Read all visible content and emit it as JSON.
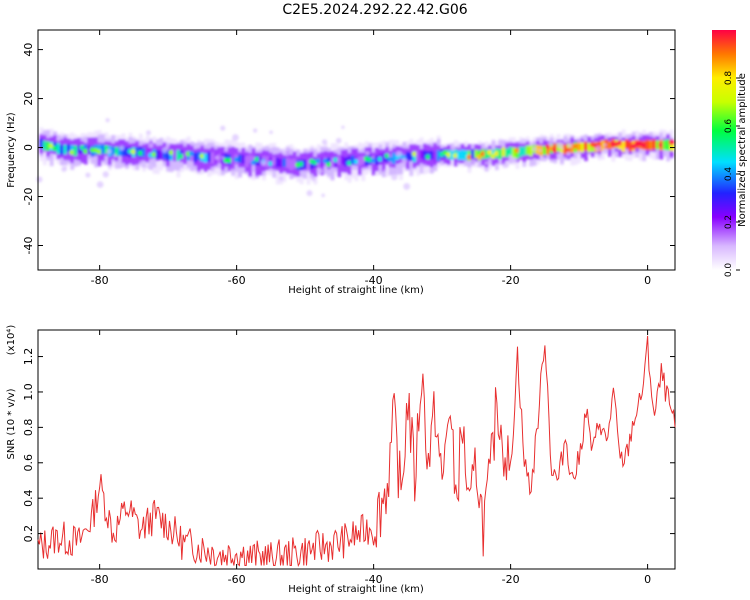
{
  "title": "C2E5.2024.292.22.42.G06",
  "chart_data": [
    {
      "type": "heatmap",
      "xlabel": "Height of straight line (km)",
      "ylabel": "Frequency (Hz)",
      "xlim": [
        -89,
        4
      ],
      "ylim": [
        -50,
        48
      ],
      "xticks": [
        "-80",
        "-60",
        "-40",
        "-20",
        "0"
      ],
      "yticks": [
        "40",
        "20",
        "0",
        "-20",
        "-40"
      ],
      "colorbar": {
        "label": "Normalized spectral amplitude",
        "range": [
          0,
          1
        ],
        "ticks": [
          "0.0",
          "0.2",
          "0.4",
          "0.6",
          "0.8"
        ]
      },
      "ridge": {
        "x": [
          -88,
          -85,
          -80,
          -75,
          -70,
          -65,
          -60,
          -55,
          -50,
          -45,
          -40,
          -35,
          -30,
          -25,
          -20,
          -15,
          -10,
          -5,
          0,
          4
        ],
        "frequency": [
          1,
          -1,
          -1,
          -2,
          -3,
          -4,
          -5,
          -6,
          -7,
          -6,
          -5,
          -4,
          -3,
          -3,
          -2,
          -1,
          0,
          1,
          1,
          1
        ],
        "amplitude": [
          0.45,
          0.4,
          0.4,
          0.38,
          0.35,
          0.3,
          0.25,
          0.22,
          0.2,
          0.2,
          0.22,
          0.28,
          0.35,
          0.5,
          0.62,
          0.72,
          0.82,
          0.85,
          0.8,
          0.75
        ]
      }
    },
    {
      "type": "line",
      "xlabel": "Height of straight line (km)",
      "ylabel": "SNR (10 * v/v)",
      "scale_label": "(x10⁴)",
      "xlim": [
        -89,
        4
      ],
      "ylim": [
        0,
        1.35
      ],
      "xticks": [
        "-80",
        "-60",
        "-40",
        "-20",
        "0"
      ],
      "yticks": [
        "0.2",
        "0.4",
        "0.6",
        "0.8",
        "1.0",
        "1.2"
      ],
      "color": "#e83030",
      "series": [
        {
          "x": [
            -89,
            -86,
            -83,
            -81,
            -80,
            -78,
            -76,
            -74,
            -72,
            -70,
            -68,
            -65,
            -62,
            -60,
            -58,
            -55,
            -52,
            -50,
            -48,
            -45,
            -42,
            -40,
            -39,
            -38,
            -37,
            -36,
            -35,
            -34,
            -33,
            -32,
            -31,
            -30,
            -29,
            -28,
            -27,
            -26,
            -25,
            -24,
            -23,
            -22,
            -21,
            -20,
            -19,
            -18,
            -17,
            -16,
            -15,
            -14,
            -13,
            -12,
            -11,
            -10,
            -9,
            -8,
            -7,
            -6,
            -5,
            -4,
            -3,
            -2,
            -1,
            0,
            1,
            2,
            3,
            4
          ],
          "y": [
            0.12,
            0.18,
            0.15,
            0.3,
            0.48,
            0.2,
            0.35,
            0.22,
            0.3,
            0.25,
            0.15,
            0.12,
            0.08,
            0.1,
            0.07,
            0.06,
            0.08,
            0.1,
            0.12,
            0.15,
            0.2,
            0.25,
            0.35,
            0.48,
            0.85,
            0.4,
            0.98,
            0.5,
            1.12,
            0.6,
            0.9,
            0.45,
            0.95,
            0.4,
            0.8,
            0.3,
            0.6,
            0.25,
            0.5,
            0.95,
            0.7,
            0.55,
            1.22,
            0.6,
            0.45,
            0.85,
            1.32,
            0.55,
            0.5,
            0.75,
            0.5,
            0.62,
            0.9,
            0.65,
            0.85,
            0.7,
            1.0,
            0.6,
            0.65,
            0.85,
            0.95,
            1.25,
            0.85,
            1.1,
            0.95,
            0.8
          ]
        }
      ]
    }
  ]
}
